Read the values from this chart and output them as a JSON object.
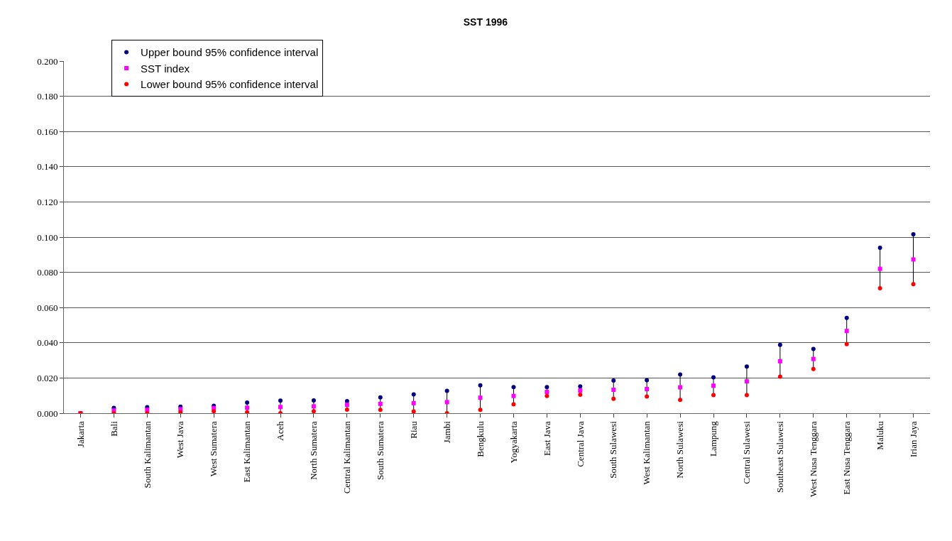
{
  "chart_data": {
    "type": "scatter",
    "title": "SST 1996",
    "categories": [
      "Jakarta",
      "Bali",
      "South Kalimantan",
      "West Java",
      "West Sumatera",
      "East Kalimantan",
      "Aceh",
      "North Sumatera",
      "Central Kalimantan",
      "South Sumatera",
      "Riau",
      "Jambi",
      "Bengkulu",
      "Yogyakarta",
      "East Java",
      "Central Java",
      "South Sulawesi",
      "West Kalimantan",
      "North Sulawesi",
      "Lampung",
      "Central Sulawesi",
      "Southeast Sulawesi",
      "West Nusa Tenggara",
      "East Nusa Tenggara",
      "Maluku",
      "Irian Jaya"
    ],
    "series": [
      {
        "name": "Upper bound 95% confidence interval",
        "color": "#000080",
        "marker": "circle",
        "values": [
          0.0,
          0.003,
          0.0034,
          0.0037,
          0.0042,
          0.006,
          0.0072,
          0.0073,
          0.0069,
          0.009,
          0.0107,
          0.0127,
          0.0158,
          0.0148,
          0.0148,
          0.0152,
          0.0185,
          0.0187,
          0.022,
          0.0204,
          0.0265,
          0.0388,
          0.0365,
          0.0541,
          0.094,
          0.1016
        ]
      },
      {
        "name": "SST index",
        "color": "#ff00ff",
        "marker": "square",
        "values": [
          0.0,
          0.0016,
          0.0019,
          0.0023,
          0.0029,
          0.0031,
          0.0035,
          0.0039,
          0.0048,
          0.0053,
          0.0057,
          0.0063,
          0.0088,
          0.0098,
          0.0121,
          0.0129,
          0.0133,
          0.0137,
          0.0147,
          0.0156,
          0.0181,
          0.0295,
          0.0308,
          0.0467,
          0.082,
          0.0873
        ]
      },
      {
        "name": "Lower bound 95% confidence interval",
        "color": "#ff0000",
        "marker": "circle",
        "values": [
          0.0,
          0.0,
          0.0,
          0.0005,
          0.0011,
          0.0005,
          0.0,
          0.0011,
          0.002,
          0.0019,
          0.001,
          0.0,
          0.0019,
          0.005,
          0.0098,
          0.0105,
          0.0082,
          0.0095,
          0.0076,
          0.0103,
          0.0103,
          0.0208,
          0.0251,
          0.0392,
          0.071,
          0.0733
        ]
      }
    ],
    "ylim": [
      0,
      0.2
    ],
    "yticks": [
      {
        "value": 0,
        "label": "0.000"
      },
      {
        "value": 0.02,
        "label": "0.020"
      },
      {
        "value": 0.04,
        "label": "0.040"
      },
      {
        "value": 0.06,
        "label": "0.060"
      },
      {
        "value": 0.08,
        "label": "0.080"
      },
      {
        "value": 0.1,
        "label": "0.100"
      },
      {
        "value": 0.12,
        "label": "0.120"
      },
      {
        "value": 0.14,
        "label": "0.140"
      },
      {
        "value": 0.16,
        "label": "0.160"
      },
      {
        "value": 0.18,
        "label": "0.180"
      },
      {
        "value": 0.2,
        "label": "0.200"
      }
    ],
    "grid": "y",
    "legend": "top left"
  }
}
